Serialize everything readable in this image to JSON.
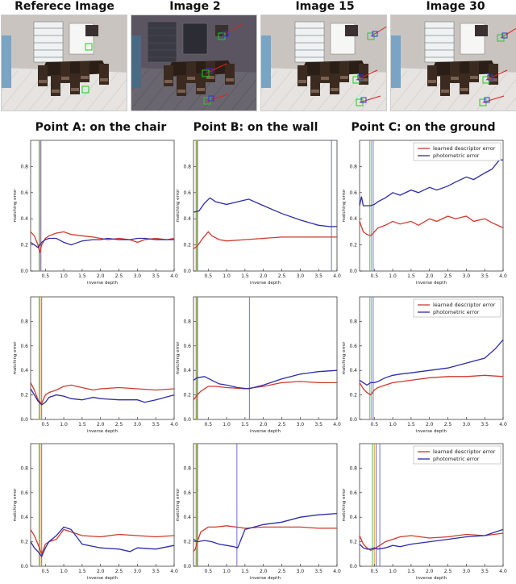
{
  "figure": {
    "image_titles": [
      "Referece Image",
      "Image 2",
      "Image 15",
      "Image 30"
    ],
    "column_titles": [
      "Point A: on the chair",
      "Point B: on the wall",
      "Point C: on the ground"
    ]
  },
  "colors": {
    "learned": "#d03a2e",
    "photometric": "#2c2ca8",
    "vline_green": "#58b85a",
    "vline_orange": "#e0a03a",
    "vline_blue": "#7070d0"
  },
  "chart_data": [
    {
      "type": "line",
      "row": 0,
      "col": 0,
      "xlabel": "inverse depth",
      "ylabel": "matching error",
      "xlim": [
        0.1,
        4.0
      ],
      "ylim": [
        0,
        1.0
      ],
      "xticks": [
        "0.5",
        "1.0",
        "1.5",
        "2.0",
        "2.5",
        "3.0",
        "3.5",
        "4.0"
      ],
      "yticks": [
        "0.0",
        "0.2",
        "0.4",
        "0.6",
        "0.8"
      ],
      "legend": null,
      "vlines": [
        0.33,
        0.36,
        0.38
      ],
      "series": [
        {
          "x": [
            0.1,
            0.2,
            0.3,
            0.35,
            0.4,
            0.5,
            0.6,
            0.8,
            1.0,
            1.2,
            1.5,
            1.8,
            2.0,
            2.2,
            2.5,
            2.8,
            3.0,
            3.2,
            3.5,
            3.8,
            4.0
          ],
          "y": [
            0.3,
            0.27,
            0.2,
            0.14,
            0.2,
            0.25,
            0.27,
            0.29,
            0.3,
            0.28,
            0.27,
            0.26,
            0.25,
            0.24,
            0.25,
            0.24,
            0.22,
            0.24,
            0.25,
            0.24,
            0.25
          ]
        },
        {
          "x": [
            0.1,
            0.2,
            0.3,
            0.35,
            0.4,
            0.5,
            0.6,
            0.8,
            1.0,
            1.2,
            1.5,
            1.8,
            2.0,
            2.2,
            2.5,
            2.8,
            3.0,
            3.2,
            3.5,
            3.8,
            4.0
          ],
          "y": [
            0.22,
            0.2,
            0.18,
            0.2,
            0.22,
            0.24,
            0.25,
            0.25,
            0.22,
            0.2,
            0.23,
            0.24,
            0.24,
            0.25,
            0.24,
            0.24,
            0.25,
            0.25,
            0.24,
            0.24,
            0.24
          ]
        }
      ]
    },
    {
      "type": "line",
      "row": 0,
      "col": 1,
      "xlabel": "inverse depth",
      "ylabel": "matching error",
      "xlim": [
        0.1,
        4.0
      ],
      "ylim": [
        0,
        1.0
      ],
      "xticks": [
        "0.5",
        "1.0",
        "1.5",
        "2.0",
        "2.5",
        "3.0",
        "3.5",
        "4.0"
      ],
      "yticks": [
        "0.0",
        "0.2",
        "0.4",
        "0.6",
        "0.8"
      ],
      "legend": null,
      "vlines": [
        0.17,
        0.19,
        0.21,
        3.85
      ],
      "series": [
        {
          "x": [
            0.1,
            0.2,
            0.35,
            0.5,
            0.6,
            0.8,
            1.0,
            1.5,
            2.0,
            2.5,
            3.0,
            3.5,
            4.0
          ],
          "y": [
            0.17,
            0.19,
            0.25,
            0.3,
            0.27,
            0.24,
            0.23,
            0.24,
            0.25,
            0.26,
            0.26,
            0.26,
            0.26
          ]
        },
        {
          "x": [
            0.1,
            0.25,
            0.4,
            0.55,
            0.7,
            1.0,
            1.3,
            1.6,
            2.0,
            2.5,
            3.0,
            3.5,
            3.8,
            4.0
          ],
          "y": [
            0.45,
            0.46,
            0.52,
            0.56,
            0.53,
            0.51,
            0.53,
            0.55,
            0.5,
            0.44,
            0.39,
            0.35,
            0.34,
            0.34
          ]
        }
      ]
    },
    {
      "type": "line",
      "row": 0,
      "col": 2,
      "xlabel": "inverse depth",
      "ylabel": "matching error",
      "xlim": [
        0.1,
        4.0
      ],
      "ylim": [
        0,
        1.0
      ],
      "xticks": [
        "0.5",
        "1.0",
        "1.5",
        "2.0",
        "2.5",
        "3.0",
        "3.5",
        "4.0"
      ],
      "yticks": [
        "0.0",
        "0.2",
        "0.4",
        "0.6",
        "0.8"
      ],
      "legend": {
        "position": "top-right",
        "entries": [
          "learned descriptor error",
          "photometric error"
        ]
      },
      "vlines": [
        0.38,
        0.42,
        0.47
      ],
      "series": [
        {
          "name": "learned descriptor error",
          "x": [
            0.1,
            0.2,
            0.3,
            0.4,
            0.5,
            0.6,
            0.8,
            1.0,
            1.2,
            1.5,
            1.7,
            2.0,
            2.2,
            2.5,
            2.7,
            3.0,
            3.2,
            3.5,
            3.7,
            4.0
          ],
          "y": [
            0.38,
            0.3,
            0.28,
            0.27,
            0.3,
            0.33,
            0.35,
            0.38,
            0.36,
            0.38,
            0.35,
            0.4,
            0.38,
            0.42,
            0.4,
            0.42,
            0.38,
            0.4,
            0.37,
            0.33
          ]
        },
        {
          "name": "photometric error",
          "x": [
            0.1,
            0.15,
            0.2,
            0.3,
            0.4,
            0.5,
            0.6,
            0.8,
            1.0,
            1.2,
            1.5,
            1.7,
            2.0,
            2.2,
            2.5,
            2.7,
            3.0,
            3.2,
            3.5,
            3.7,
            3.9,
            4.0
          ],
          "y": [
            0.5,
            0.57,
            0.5,
            0.5,
            0.5,
            0.51,
            0.53,
            0.56,
            0.6,
            0.58,
            0.62,
            0.6,
            0.64,
            0.62,
            0.65,
            0.68,
            0.72,
            0.7,
            0.75,
            0.78,
            0.85,
            0.85
          ]
        }
      ]
    },
    {
      "type": "line",
      "row": 1,
      "col": 0,
      "xlabel": "inverse depth",
      "ylabel": "matching error",
      "xlim": [
        0.1,
        4.0
      ],
      "ylim": [
        0,
        1.0
      ],
      "xticks": [
        "0.5",
        "1.0",
        "1.5",
        "2.0",
        "2.5",
        "3.0",
        "3.5",
        "4.0"
      ],
      "yticks": [
        "0.0",
        "0.2",
        "0.4",
        "0.6",
        "0.8"
      ],
      "legend": null,
      "vlines": [
        0.33,
        0.36,
        0.4
      ],
      "series": [
        {
          "x": [
            0.1,
            0.2,
            0.3,
            0.4,
            0.5,
            0.6,
            0.8,
            1.0,
            1.2,
            1.5,
            1.8,
            2.0,
            2.5,
            3.0,
            3.5,
            4.0
          ],
          "y": [
            0.3,
            0.24,
            0.16,
            0.13,
            0.2,
            0.22,
            0.24,
            0.27,
            0.28,
            0.26,
            0.24,
            0.25,
            0.26,
            0.25,
            0.24,
            0.25
          ]
        },
        {
          "x": [
            0.1,
            0.2,
            0.3,
            0.4,
            0.5,
            0.6,
            0.8,
            1.0,
            1.2,
            1.5,
            1.8,
            2.0,
            2.5,
            3.0,
            3.2,
            3.5,
            4.0
          ],
          "y": [
            0.25,
            0.2,
            0.15,
            0.12,
            0.14,
            0.18,
            0.2,
            0.19,
            0.17,
            0.16,
            0.18,
            0.17,
            0.16,
            0.16,
            0.14,
            0.16,
            0.2
          ]
        }
      ]
    },
    {
      "type": "line",
      "row": 1,
      "col": 1,
      "xlabel": "inverse depth",
      "ylabel": "matching error",
      "xlim": [
        0.1,
        4.0
      ],
      "ylim": [
        0,
        1.0
      ],
      "xticks": [
        "0.5",
        "1.0",
        "1.5",
        "2.0",
        "2.5",
        "3.0",
        "3.5",
        "4.0"
      ],
      "yticks": [
        "0.0",
        "0.2",
        "0.4",
        "0.6",
        "0.8"
      ],
      "legend": null,
      "vlines": [
        0.17,
        0.19,
        0.21,
        1.62
      ],
      "series": [
        {
          "x": [
            0.1,
            0.2,
            0.3,
            0.5,
            0.7,
            1.0,
            1.5,
            2.0,
            2.5,
            3.0,
            3.5,
            4.0
          ],
          "y": [
            0.16,
            0.2,
            0.23,
            0.27,
            0.27,
            0.26,
            0.25,
            0.27,
            0.3,
            0.31,
            0.3,
            0.3
          ]
        },
        {
          "x": [
            0.1,
            0.2,
            0.4,
            0.6,
            0.8,
            1.0,
            1.3,
            1.6,
            2.0,
            2.5,
            3.0,
            3.5,
            4.0
          ],
          "y": [
            0.32,
            0.34,
            0.35,
            0.32,
            0.29,
            0.28,
            0.26,
            0.25,
            0.28,
            0.33,
            0.37,
            0.39,
            0.4
          ]
        }
      ]
    },
    {
      "type": "line",
      "row": 1,
      "col": 2,
      "xlabel": "inverse depth",
      "ylabel": "matching error",
      "xlim": [
        0.1,
        4.0
      ],
      "ylim": [
        0,
        1.0
      ],
      "xticks": [
        "0.5",
        "1.0",
        "1.5",
        "2.0",
        "2.5",
        "3.0",
        "3.5",
        "4.0"
      ],
      "yticks": [
        "0.0",
        "0.2",
        "0.4",
        "0.6",
        "0.8"
      ],
      "legend": {
        "position": "top-right",
        "entries": [
          "learned descriptor error",
          "photometric error"
        ]
      },
      "vlines": [
        0.38,
        0.42,
        0.47
      ],
      "series": [
        {
          "name": "learned descriptor error",
          "x": [
            0.1,
            0.2,
            0.3,
            0.4,
            0.5,
            0.6,
            0.8,
            1.0,
            1.5,
            2.0,
            2.5,
            3.0,
            3.5,
            4.0
          ],
          "y": [
            0.3,
            0.25,
            0.22,
            0.2,
            0.24,
            0.26,
            0.28,
            0.3,
            0.32,
            0.34,
            0.35,
            0.35,
            0.36,
            0.35
          ]
        },
        {
          "name": "photometric error",
          "x": [
            0.1,
            0.2,
            0.3,
            0.4,
            0.5,
            0.6,
            0.8,
            1.0,
            1.2,
            1.5,
            2.0,
            2.5,
            3.0,
            3.5,
            3.8,
            4.0
          ],
          "y": [
            0.32,
            0.3,
            0.28,
            0.3,
            0.3,
            0.31,
            0.34,
            0.36,
            0.37,
            0.38,
            0.4,
            0.42,
            0.46,
            0.5,
            0.58,
            0.65
          ]
        }
      ]
    },
    {
      "type": "line",
      "row": 2,
      "col": 0,
      "xlabel": "inverse depth",
      "ylabel": "matching error",
      "xlim": [
        0.1,
        4.0
      ],
      "ylim": [
        0,
        1.0
      ],
      "xticks": [
        "0.5",
        "1.0",
        "1.5",
        "2.0",
        "2.5",
        "3.0",
        "3.5",
        "4.0"
      ],
      "yticks": [
        "0.0",
        "0.2",
        "0.4",
        "0.6",
        "0.8"
      ],
      "legend": null,
      "vlines": [
        0.33,
        0.36,
        0.4
      ],
      "series": [
        {
          "x": [
            0.1,
            0.2,
            0.3,
            0.4,
            0.5,
            0.6,
            0.8,
            1.0,
            1.2,
            1.5,
            2.0,
            2.5,
            3.0,
            3.5,
            4.0
          ],
          "y": [
            0.3,
            0.25,
            0.18,
            0.1,
            0.18,
            0.2,
            0.22,
            0.3,
            0.28,
            0.25,
            0.24,
            0.26,
            0.25,
            0.24,
            0.25
          ]
        },
        {
          "x": [
            0.1,
            0.2,
            0.3,
            0.4,
            0.5,
            0.6,
            0.8,
            1.0,
            1.2,
            1.5,
            2.0,
            2.5,
            2.8,
            3.0,
            3.5,
            4.0
          ],
          "y": [
            0.2,
            0.15,
            0.12,
            0.08,
            0.15,
            0.2,
            0.25,
            0.32,
            0.3,
            0.18,
            0.15,
            0.14,
            0.12,
            0.15,
            0.14,
            0.17
          ]
        }
      ]
    },
    {
      "type": "line",
      "row": 2,
      "col": 1,
      "xlabel": "inverse depth",
      "ylabel": "matching error",
      "xlim": [
        0.1,
        4.0
      ],
      "ylim": [
        0,
        1.0
      ],
      "xticks": [
        "0.5",
        "1.0",
        "1.5",
        "2.0",
        "2.5",
        "3.0",
        "3.5",
        "4.0"
      ],
      "yticks": [
        "0.0",
        "0.2",
        "0.4",
        "0.6",
        "0.8"
      ],
      "legend": null,
      "vlines": [
        0.17,
        0.19,
        0.21,
        1.28
      ],
      "series": [
        {
          "x": [
            0.1,
            0.15,
            0.2,
            0.3,
            0.5,
            0.7,
            1.0,
            1.5,
            2.0,
            2.5,
            3.0,
            3.5,
            4.0
          ],
          "y": [
            0.12,
            0.14,
            0.2,
            0.28,
            0.32,
            0.32,
            0.33,
            0.31,
            0.32,
            0.32,
            0.32,
            0.31,
            0.31
          ]
        },
        {
          "x": [
            0.1,
            0.2,
            0.4,
            0.6,
            0.8,
            1.0,
            1.2,
            1.3,
            1.5,
            2.0,
            2.5,
            3.0,
            3.5,
            4.0
          ],
          "y": [
            0.22,
            0.2,
            0.21,
            0.2,
            0.18,
            0.17,
            0.16,
            0.15,
            0.3,
            0.34,
            0.36,
            0.4,
            0.42,
            0.43
          ]
        }
      ]
    },
    {
      "type": "line",
      "row": 2,
      "col": 2,
      "xlabel": "inverse depth",
      "ylabel": "matching error",
      "xlim": [
        0.1,
        4.0
      ],
      "ylim": [
        0,
        1.0
      ],
      "xticks": [
        "0.5",
        "1.0",
        "1.5",
        "2.0",
        "2.5",
        "3.0",
        "3.5",
        "4.0"
      ],
      "yticks": [
        "0.0",
        "0.2",
        "0.4",
        "0.6",
        "0.8"
      ],
      "legend": {
        "position": "top-right",
        "entries": [
          "learned descriptor error",
          "photometric error"
        ]
      },
      "vlines": [
        0.45,
        0.5,
        0.55,
        0.65
      ],
      "series": [
        {
          "name": "learned descriptor error",
          "x": [
            0.1,
            0.2,
            0.3,
            0.4,
            0.5,
            0.6,
            0.8,
            1.0,
            1.2,
            1.5,
            2.0,
            2.5,
            3.0,
            3.5,
            4.0
          ],
          "y": [
            0.25,
            0.18,
            0.15,
            0.13,
            0.14,
            0.16,
            0.2,
            0.22,
            0.24,
            0.25,
            0.23,
            0.24,
            0.26,
            0.25,
            0.27
          ]
        },
        {
          "name": "photometric error",
          "x": [
            0.1,
            0.2,
            0.3,
            0.4,
            0.5,
            0.6,
            0.8,
            1.0,
            1.2,
            1.5,
            2.0,
            2.5,
            3.0,
            3.5,
            3.8,
            4.0
          ],
          "y": [
            0.18,
            0.15,
            0.14,
            0.14,
            0.15,
            0.14,
            0.15,
            0.17,
            0.16,
            0.18,
            0.2,
            0.22,
            0.24,
            0.25,
            0.28,
            0.3
          ]
        }
      ]
    }
  ]
}
